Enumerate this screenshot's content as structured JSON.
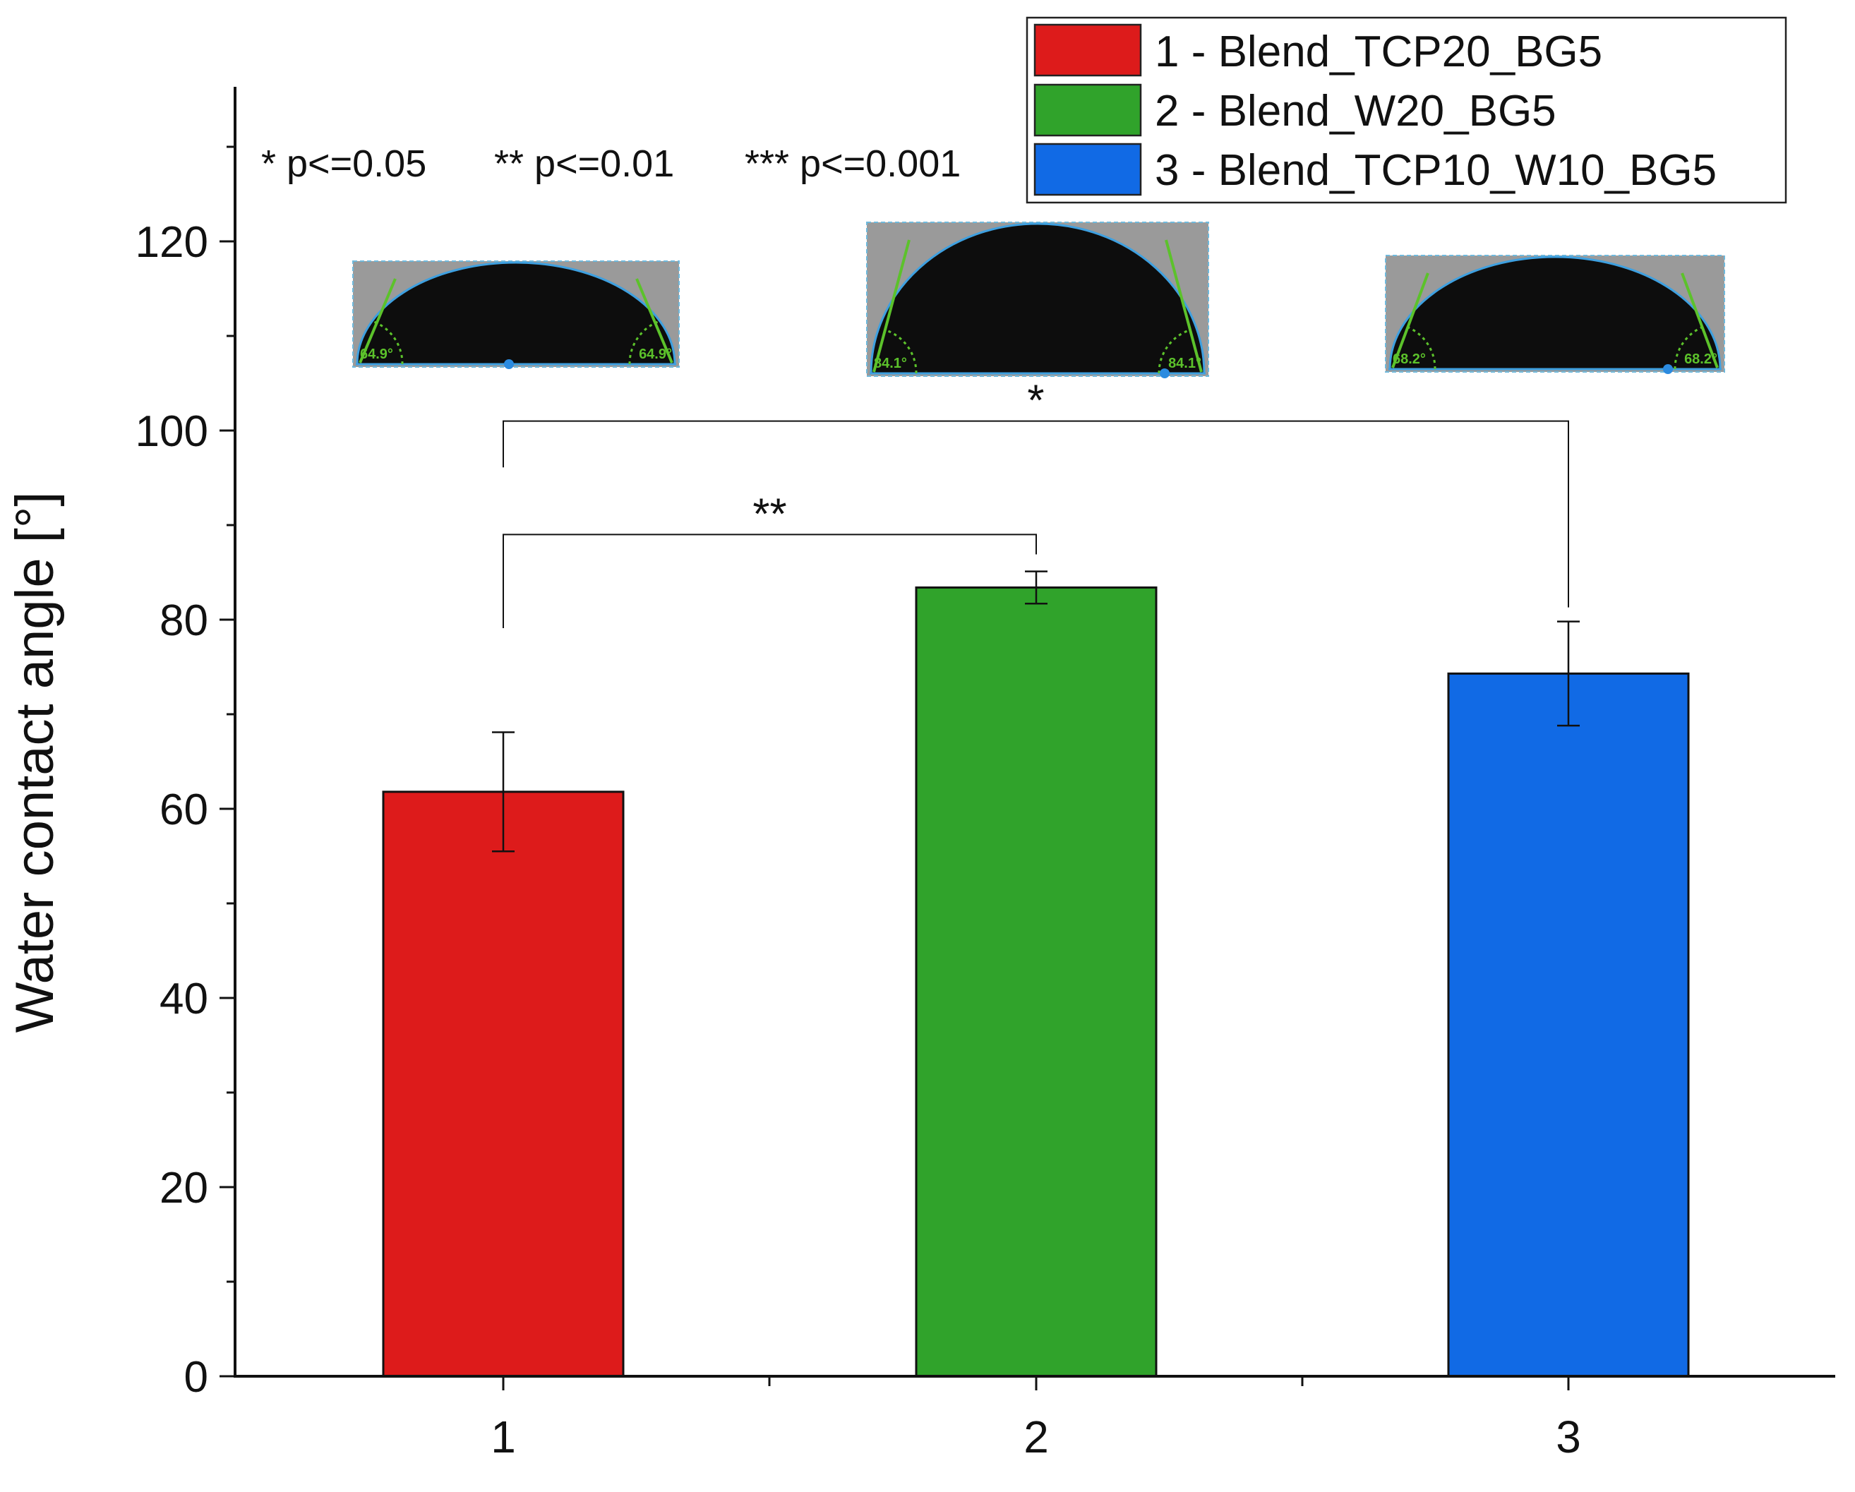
{
  "chart_data": {
    "type": "bar",
    "categories": [
      "1",
      "2",
      "3"
    ],
    "values": [
      61.8,
      83.4,
      74.3
    ],
    "errors": [
      6.3,
      1.7,
      5.5
    ],
    "colors": [
      "#dd1b1b",
      "#30a32b",
      "#116ae5"
    ],
    "xlabel": "",
    "ylabel": "Water contact angle [°]",
    "ylim": [
      0,
      135
    ],
    "yticks": [
      0,
      20,
      40,
      60,
      80,
      100,
      120
    ],
    "ytick_labels": [
      "0",
      "20",
      "40",
      "60",
      "80",
      "100",
      "120"
    ],
    "legend": {
      "position": "top-right",
      "entries": [
        "1 - Blend_TCP20_BG5",
        "2 - Blend_W20_BG5",
        "3 - Blend_TCP10_W10_BG5"
      ]
    },
    "significance_note": [
      "* p<=0.05",
      "** p<=0.01",
      "*** p<=0.001"
    ],
    "brackets": [
      {
        "from": 0,
        "to": 1,
        "level": 89,
        "label": "**"
      },
      {
        "from": 0,
        "to": 2,
        "level": 101,
        "label": "*"
      }
    ],
    "insets": [
      {
        "bar": 0,
        "angle_left": "64.9°",
        "angle_right": "64.9°"
      },
      {
        "bar": 1,
        "angle_left": "84.1°",
        "angle_right": "84.1°"
      },
      {
        "bar": 2,
        "angle_left": "68.2°",
        "angle_right": "68.2°"
      }
    ]
  }
}
